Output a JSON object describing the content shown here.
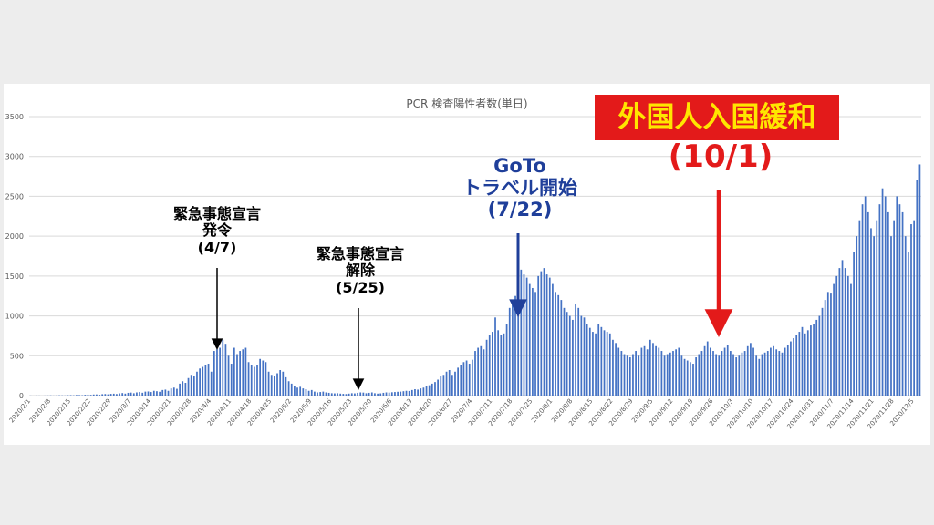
{
  "chart_data": {
    "type": "bar",
    "title": "PCR 検査陽性者数(単日)",
    "xlabel": "",
    "ylabel": "",
    "ylim": [
      0,
      3500
    ],
    "yticks": [
      0,
      500,
      1000,
      1500,
      2000,
      2500,
      3000,
      3500
    ],
    "grid": true,
    "start_date": "2020-02-01",
    "tick_labels": [
      "2020/2/1",
      "2020/2/8",
      "2020/2/15",
      "2020/2/22",
      "2020/2/29",
      "2020/3/7",
      "2020/3/14",
      "2020/3/21",
      "2020/3/28",
      "2020/4/4",
      "2020/4/11",
      "2020/4/18",
      "2020/4/25",
      "2020/5/2",
      "2020/5/9",
      "2020/5/16",
      "2020/5/23",
      "2020/5/30",
      "2020/6/6",
      "2020/6/13",
      "2020/6/20",
      "2020/6/27",
      "2020/7/4",
      "2020/7/11",
      "2020/7/18",
      "2020/7/25",
      "2020/8/1",
      "2020/8/8",
      "2020/8/15",
      "2020/8/22",
      "2020/8/29",
      "2020/9/5",
      "2020/9/12",
      "2020/9/19",
      "2020/9/26",
      "2020/10/3",
      "2020/10/10",
      "2020/10/17",
      "2020/10/24",
      "2020/10/31",
      "2020/11/7",
      "2020/11/14",
      "2020/11/21",
      "2020/11/28",
      "2020/12/5"
    ],
    "values": [
      1,
      0,
      2,
      1,
      0,
      1,
      2,
      3,
      1,
      2,
      4,
      3,
      2,
      5,
      6,
      4,
      8,
      7,
      5,
      10,
      12,
      9,
      14,
      15,
      11,
      18,
      20,
      16,
      22,
      24,
      20,
      28,
      32,
      25,
      35,
      38,
      30,
      40,
      45,
      36,
      50,
      52,
      45,
      60,
      55,
      48,
      70,
      75,
      60,
      90,
      100,
      85,
      150,
      180,
      160,
      220,
      260,
      240,
      300,
      340,
      360,
      380,
      400,
      300,
      560,
      580,
      600,
      700,
      650,
      500,
      400,
      600,
      520,
      560,
      580,
      600,
      420,
      380,
      360,
      380,
      460,
      440,
      420,
      300,
      260,
      240,
      280,
      320,
      300,
      230,
      180,
      150,
      120,
      100,
      110,
      90,
      80,
      60,
      70,
      50,
      40,
      45,
      50,
      40,
      35,
      30,
      28,
      30,
      25,
      22,
      20,
      25,
      30,
      28,
      35,
      40,
      38,
      30,
      35,
      40,
      30,
      25,
      28,
      35,
      40,
      38,
      42,
      45,
      48,
      50,
      55,
      60,
      58,
      70,
      80,
      75,
      90,
      100,
      120,
      130,
      150,
      170,
      200,
      240,
      260,
      300,
      320,
      260,
      300,
      350,
      380,
      420,
      440,
      400,
      450,
      560,
      600,
      620,
      580,
      700,
      760,
      800,
      980,
      820,
      760,
      780,
      900,
      1100,
      1200,
      1250,
      1300,
      1580,
      1520,
      1480,
      1400,
      1350,
      1300,
      1500,
      1560,
      1600,
      1520,
      1480,
      1400,
      1300,
      1260,
      1200,
      1100,
      1050,
      1000,
      950,
      1150,
      1100,
      1000,
      980,
      900,
      850,
      800,
      780,
      900,
      860,
      820,
      800,
      780,
      700,
      660,
      600,
      560,
      520,
      500,
      480,
      520,
      560,
      500,
      600,
      620,
      580,
      700,
      660,
      620,
      600,
      560,
      500,
      520,
      540,
      560,
      580,
      600,
      500,
      460,
      440,
      420,
      400,
      480,
      520,
      560,
      620,
      680,
      600,
      560,
      520,
      500,
      560,
      600,
      640,
      560,
      520,
      480,
      500,
      540,
      560,
      620,
      660,
      600,
      500,
      460,
      520,
      540,
      560,
      600,
      620,
      580,
      560,
      540,
      600,
      640,
      680,
      720,
      760,
      800,
      860,
      780,
      820,
      880,
      900,
      950,
      1000,
      1100,
      1200,
      1300,
      1280,
      1400,
      1500,
      1600,
      1700,
      1600,
      1500,
      1400,
      1800,
      2000,
      2200,
      2400,
      2500,
      2300,
      2100,
      2000,
      2200,
      2400,
      2600,
      2500,
      2300,
      2000,
      2200,
      2500,
      2400,
      2300,
      2000,
      1800,
      2150,
      2200,
      2700,
      2900
    ]
  },
  "annotations": {
    "emergency": {
      "line1": "緊急事態宣言",
      "line2": "発令",
      "line3": "(4/7)"
    },
    "lift": {
      "line1": "緊急事態宣言",
      "line2": "解除",
      "line3": "(5/25)"
    },
    "goto": {
      "line1": "GoTo",
      "line2": "トラベル開始",
      "line3": "(7/22)"
    },
    "foreign": {
      "label": "外国人入国緩和",
      "date": "(10/1)"
    }
  },
  "colors": {
    "bar": "#4472c4",
    "goto_blue": "#1f3f9a",
    "foreign_red": "#e31a1a",
    "foreign_text": "#ffe600"
  }
}
